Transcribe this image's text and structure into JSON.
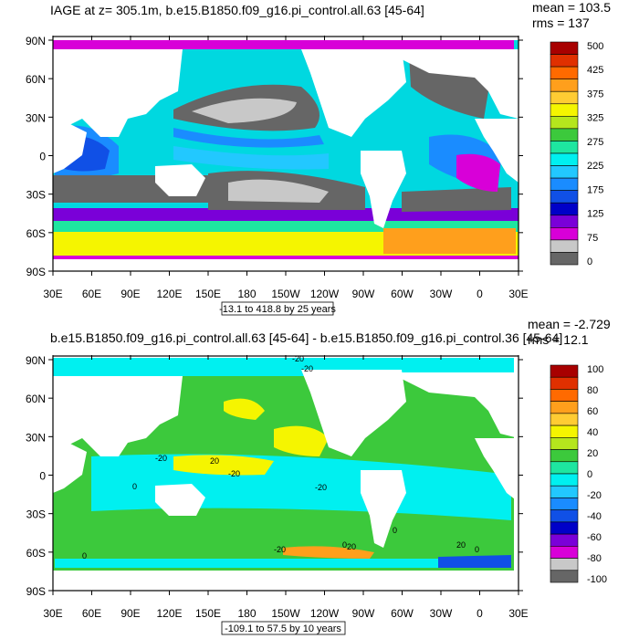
{
  "panels": [
    {
      "title": "IAGE at z= 305.1m, b.e15.B1850.f09_g16.pi_control.all.63 [45-64]",
      "stats_mean": "mean = 103.5",
      "stats_rms": "rms = 137",
      "range_label": "-13.1 to 418.8 by 25 years",
      "lat_labels": [
        "90N",
        "60N",
        "30N",
        "0",
        "30S",
        "60S",
        "90S"
      ],
      "lon_labels": [
        "30E",
        "60E",
        "90E",
        "120E",
        "150E",
        "180",
        "150W",
        "120W",
        "90W",
        "60W",
        "30W",
        "0",
        "30E"
      ],
      "colorbar": {
        "labels": [
          "500",
          "425",
          "375",
          "325",
          "275",
          "225",
          "175",
          "125",
          "75",
          "0"
        ],
        "colors": [
          "#a80000",
          "#e03000",
          "#ff6a00",
          "#ff9f1c",
          "#ffcc33",
          "#f5f500",
          "#b5e61d",
          "#3cc93c",
          "#1ee6a0",
          "#00f0f0",
          "#22c8ff",
          "#1a8cff",
          "#1050e6",
          "#0000c8",
          "#7a00d8",
          "#d800d8",
          "#c8c8c8",
          "#666666"
        ]
      },
      "contour_labels": []
    },
    {
      "title": "b.e15.B1850.f09_g16.pi_control.all.63 [45-64] - b.e15.B1850.f09_g16.pi_control.36 [45-64]",
      "stats_mean": "mean = -2.729",
      "stats_rms": "rms = 12.1",
      "range_label": "-109.1 to 57.5 by 10 years",
      "lat_labels": [
        "90N",
        "60N",
        "30N",
        "0",
        "30S",
        "60S",
        "90S"
      ],
      "lon_labels": [
        "30E",
        "60E",
        "90E",
        "120E",
        "150E",
        "180",
        "150W",
        "120W",
        "90W",
        "60W",
        "30W",
        "0",
        "30E"
      ],
      "colorbar": {
        "labels": [
          "100",
          "80",
          "60",
          "40",
          "20",
          "0",
          "-20",
          "-40",
          "-60",
          "-80",
          "-100"
        ],
        "colors": [
          "#a80000",
          "#e03000",
          "#ff6a00",
          "#ff9f1c",
          "#ffcc33",
          "#f5f500",
          "#b5e61d",
          "#3cc93c",
          "#1ee6a0",
          "#00f0f0",
          "#22c8ff",
          "#1a8cff",
          "#1050e6",
          "#0000c8",
          "#7a00d8",
          "#d800d8",
          "#c8c8c8",
          "#666666"
        ]
      },
      "contour_labels": [
        "-20",
        "-20",
        "20",
        "-20",
        "-20",
        "0",
        "-20",
        "0",
        "0",
        "-20",
        "20",
        "0",
        "0",
        "20"
      ]
    }
  ]
}
